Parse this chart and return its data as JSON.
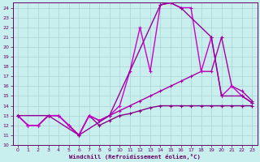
{
  "xlabel": "Windchill (Refroidissement éolien,°C)",
  "xlim": [
    -0.5,
    23.5
  ],
  "ylim": [
    10,
    24.5
  ],
  "xticks": [
    0,
    1,
    2,
    3,
    4,
    5,
    6,
    7,
    8,
    9,
    10,
    11,
    12,
    13,
    14,
    15,
    16,
    17,
    18,
    19,
    20,
    21,
    22,
    23
  ],
  "yticks": [
    10,
    11,
    12,
    13,
    14,
    15,
    16,
    17,
    18,
    19,
    20,
    21,
    22,
    23,
    24
  ],
  "bg_color": "#c8eeee",
  "grid_color": "#aad4d4",
  "line_color": "#990099",
  "series": [
    {
      "x": [
        0,
        1,
        2,
        3,
        4,
        5,
        6,
        7,
        8,
        9,
        10,
        11,
        12,
        13,
        14,
        15,
        16,
        17,
        18,
        19,
        20,
        21,
        22,
        23
      ],
      "y": [
        13,
        12,
        12,
        13,
        13,
        12,
        11,
        13,
        12,
        12.5,
        13,
        13.2,
        13.5,
        13.8,
        14,
        14,
        14,
        14,
        14,
        14,
        14,
        14,
        14,
        14
      ],
      "color": "#880088",
      "lw": 1.0
    },
    {
      "x": [
        0,
        1,
        2,
        3,
        4,
        5,
        6,
        7,
        8,
        9,
        10,
        11,
        12,
        13,
        14,
        15,
        16,
        17,
        18,
        19,
        20,
        21,
        22,
        23
      ],
      "y": [
        13,
        12,
        12,
        13,
        13,
        12,
        11,
        13,
        12.5,
        13,
        13.5,
        14,
        14.5,
        15,
        15.5,
        16,
        16.5,
        17,
        17.5,
        17.5,
        21,
        16,
        15.5,
        14.5
      ],
      "color": "#aa00aa",
      "lw": 1.0
    },
    {
      "x": [
        0,
        1,
        2,
        3,
        4,
        5,
        6,
        7,
        8,
        9,
        10,
        11,
        12,
        13,
        14,
        15,
        16,
        17,
        18,
        19,
        20,
        21,
        22,
        23
      ],
      "y": [
        13,
        12,
        12,
        13,
        13,
        12,
        11,
        13,
        12.5,
        13,
        14,
        17.5,
        22,
        17.5,
        24.3,
        24.5,
        24,
        24,
        17.5,
        21,
        15,
        16,
        15,
        14.3
      ],
      "color": "#cc00cc",
      "lw": 1.0
    },
    {
      "x": [
        0,
        3,
        6,
        9,
        14,
        15,
        16,
        19,
        20,
        22,
        23
      ],
      "y": [
        13,
        13,
        11,
        13,
        24.3,
        24.5,
        24,
        21,
        15,
        15,
        14.3
      ],
      "color": "#990099",
      "lw": 1.0
    }
  ]
}
